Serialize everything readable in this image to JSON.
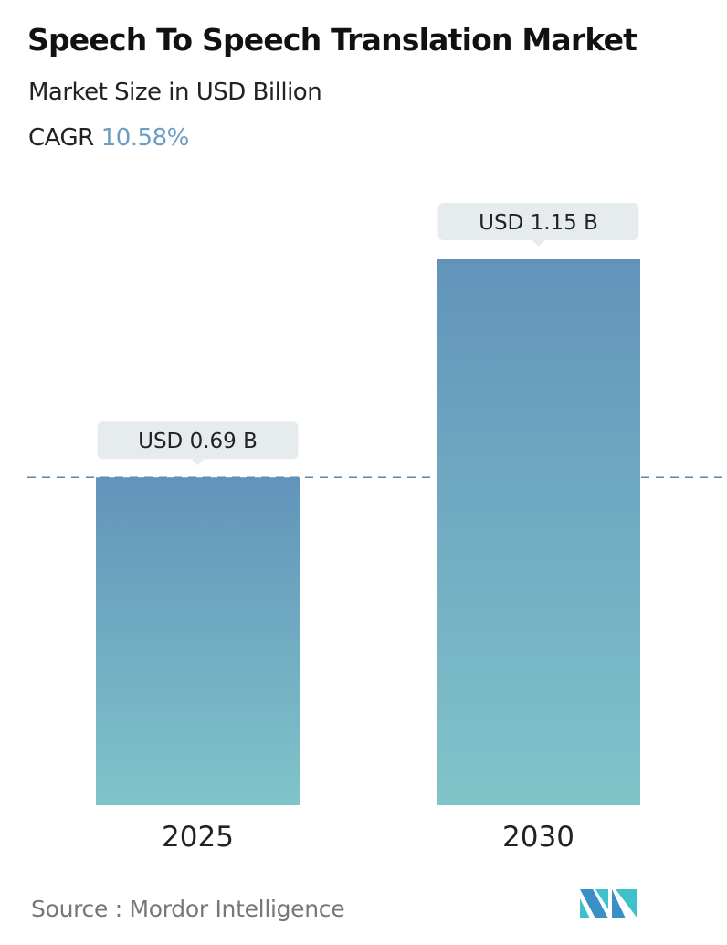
{
  "chart_data": {
    "type": "bar",
    "title": "Speech To Speech Translation Market",
    "subtitle": "Market Size in USD Billion",
    "cagr_label": "CAGR",
    "cagr_value": "10.58%",
    "categories": [
      "2025",
      "2030"
    ],
    "values": [
      0.69,
      1.15
    ],
    "data_labels": [
      "USD 0.69 B",
      "USD 1.15 B"
    ],
    "ylim": [
      0,
      1.15
    ],
    "grid": false,
    "reference_line": 0.69,
    "colors": {
      "bar_top": "#6294bb",
      "bar_bottom": "#80c4c9",
      "label_bg": "#e6ecee",
      "accent": "#6b9ec2"
    }
  },
  "source": "Source :  Mordor Intelligence",
  "logo": "Mordor Intelligence logo"
}
